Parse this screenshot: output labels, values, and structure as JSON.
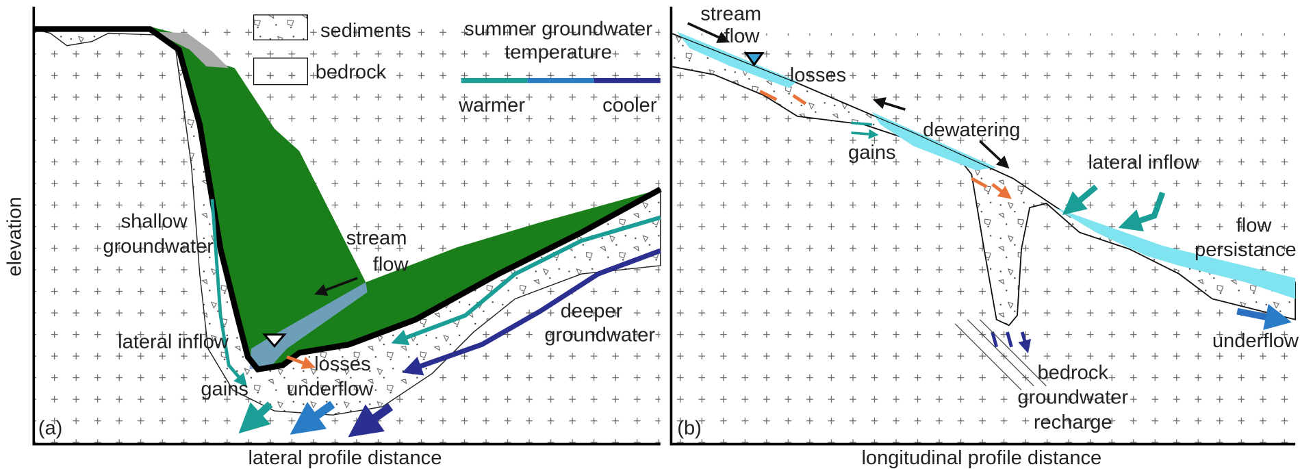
{
  "panel_a": {
    "label": "(a)",
    "x_axis": "lateral profile distance",
    "y_axis": "elevation",
    "legend": {
      "sediments": "sediments",
      "bedrock": "bedrock",
      "temperature_title": [
        "summer groundwater",
        "temperature"
      ],
      "warmer": "warmer",
      "cooler": "cooler"
    },
    "labels": {
      "shallow_groundwater": [
        "shallow",
        "groundwater"
      ],
      "stream_flow": [
        "stream",
        "flow"
      ],
      "deeper_groundwater": [
        "deeper",
        "groundwater"
      ],
      "lateral_inflow": "lateral inflow",
      "losses": "losses",
      "gains": "gains",
      "underflow": "underflow"
    }
  },
  "panel_b": {
    "label": "(b)",
    "x_axis": "longitudinal profile distance",
    "labels": {
      "stream_flow": [
        "stream",
        "flow"
      ],
      "losses": "losses",
      "dewatering": "dewatering",
      "gains": "gains",
      "lateral_inflow": "lateral inflow",
      "flow_persistance": [
        "flow",
        "persistance"
      ],
      "underflow": "underflow",
      "bedrock_recharge": [
        "bedrock",
        "groundwater",
        "recharge"
      ]
    }
  }
}
